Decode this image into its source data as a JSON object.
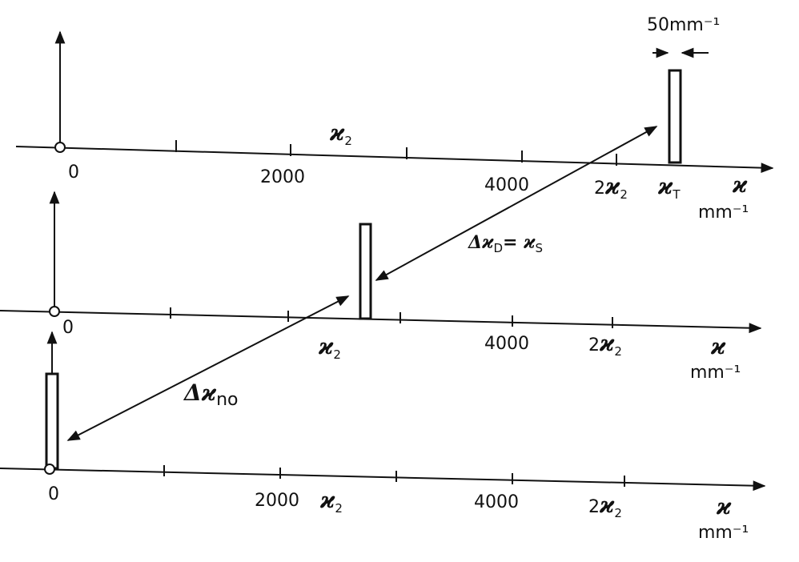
{
  "panels": [
    {
      "origin": "0",
      "ticks": [
        "2000",
        "4000"
      ],
      "k2": {
        "symbol": "ϰ",
        "sub": "2"
      },
      "two_k2": {
        "prefix": "2",
        "symbol": "ϰ",
        "sub": "2"
      },
      "kT": {
        "symbol": "ϰ",
        "sub": "T"
      },
      "axis_symbol": "ϰ",
      "axis_unit": "mm⁻¹",
      "width_label": "50mm⁻¹",
      "shift_label": {
        "symbol": "Δϰ",
        "sub": "D",
        "eq": "= ϰ",
        "sub2": "S"
      }
    },
    {
      "origin": "0",
      "ticks": [
        "4000"
      ],
      "k2": {
        "symbol": "ϰ",
        "sub": "2"
      },
      "two_k2": {
        "prefix": "2",
        "symbol": "ϰ",
        "sub": "2"
      },
      "axis_symbol": "ϰ",
      "axis_unit": "mm⁻¹",
      "shift_label": {
        "symbol": "Δϰ",
        "sub": "no"
      }
    },
    {
      "origin": "0",
      "ticks": [
        "2000",
        "4000"
      ],
      "k2": {
        "symbol": "ϰ",
        "sub": "2"
      },
      "two_k2": {
        "prefix": "2",
        "symbol": "ϰ",
        "sub": "2"
      },
      "axis_symbol": "ϰ",
      "axis_unit": "mm⁻¹"
    }
  ]
}
